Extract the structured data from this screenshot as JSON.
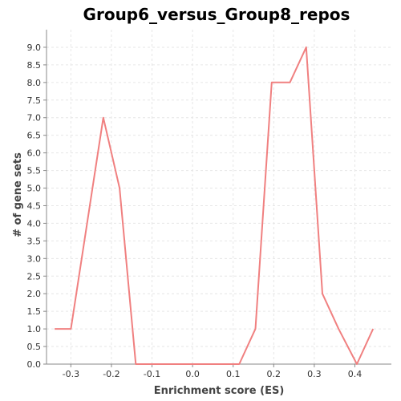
{
  "chart_data": {
    "type": "line",
    "title": "Group6_versus_Group8_repos",
    "xlabel": "Enrichment score (ES)",
    "ylabel": "# of gene sets",
    "xlim": [
      -0.36,
      0.49
    ],
    "ylim": [
      0,
      9.5
    ],
    "xticks": [
      -0.3,
      -0.2,
      -0.1,
      0.0,
      0.1,
      0.2,
      0.3,
      0.4
    ],
    "xtick_labels": [
      "-0.3",
      "-0.2",
      "-0.1",
      "0.0",
      "0.1",
      "0.2",
      "0.3",
      "0.4"
    ],
    "yticks": [
      0,
      0.5,
      1,
      1.5,
      2,
      2.5,
      3,
      3.5,
      4,
      4.5,
      5,
      5.5,
      6,
      6.5,
      7,
      7.5,
      8,
      8.5,
      9
    ],
    "ytick_labels": [
      "0.0",
      "0.5",
      "1.0",
      "1.5",
      "2.0",
      "2.5",
      "3.0",
      "3.5",
      "4.0",
      "4.5",
      "5.0",
      "5.5",
      "6.0",
      "6.5",
      "7.0",
      "7.5",
      "8.0",
      "8.5",
      "9.0"
    ],
    "grid": true,
    "legend": "none",
    "series": [
      {
        "color": "#f08080",
        "x": [
          -0.34,
          -0.3,
          -0.26,
          -0.22,
          -0.18,
          -0.14,
          -0.1,
          -0.06,
          -0.02,
          0.02,
          0.06,
          0.1,
          0.115,
          0.155,
          0.195,
          0.24,
          0.28,
          0.32,
          0.36,
          0.405,
          0.445
        ],
        "y": [
          1,
          1,
          4,
          7,
          5,
          0,
          0,
          0,
          0,
          0,
          0,
          0,
          0,
          1,
          8,
          8,
          9,
          2,
          1,
          0,
          1
        ]
      }
    ]
  }
}
